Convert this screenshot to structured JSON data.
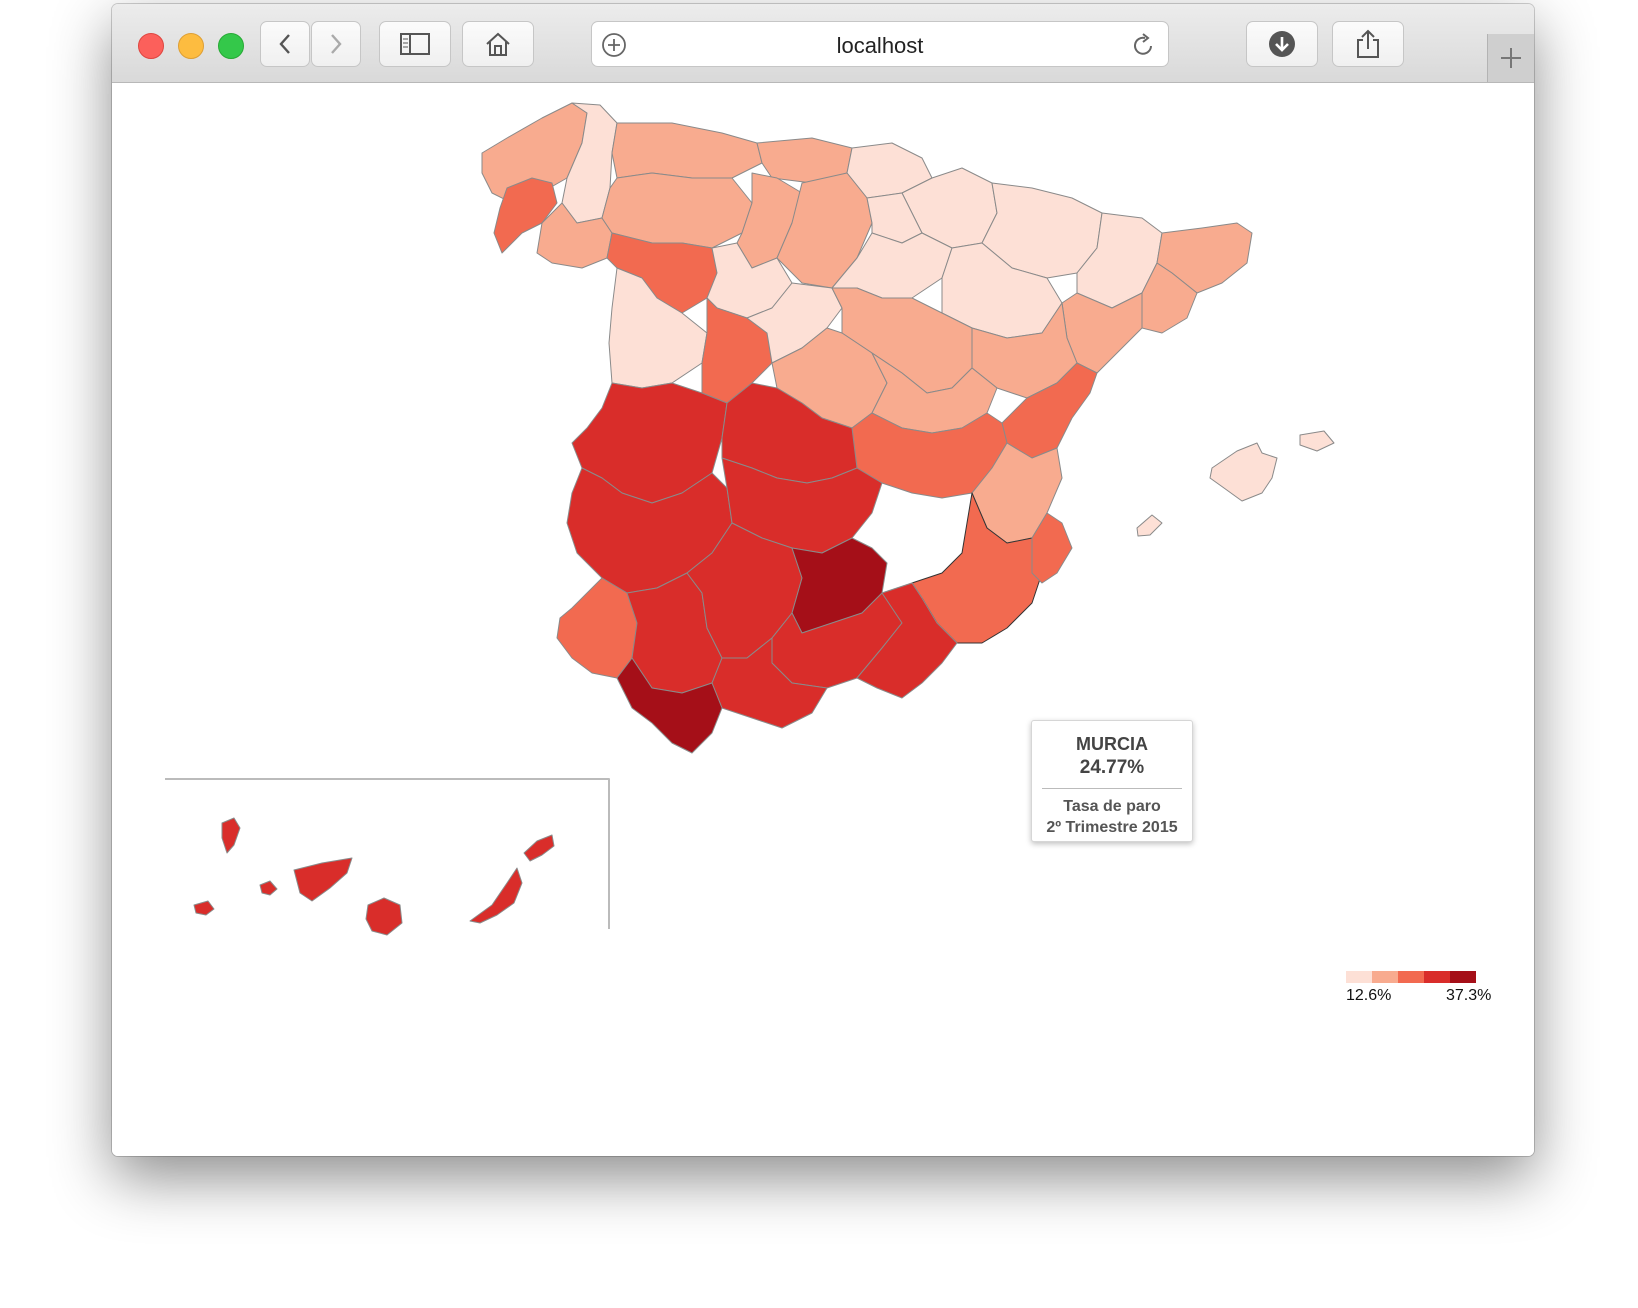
{
  "browser": {
    "address_text": "localhost",
    "icons": [
      "back-icon",
      "forward-icon",
      "sidebar-icon",
      "home-icon",
      "new-tab-add-icon",
      "reload-icon",
      "download-icon",
      "share-icon",
      "plus-icon"
    ]
  },
  "tooltip": {
    "region": "MURCIA",
    "value": "24.77%",
    "caption_line1": "Tasa de paro",
    "caption_line2": "2º Trimestre 2015"
  },
  "legend": {
    "min_label": "12.6%",
    "max_label": "37.3%",
    "colors": [
      "#fde0d6",
      "#f8ab8f",
      "#f26a50",
      "#d92d2a",
      "#a50f18"
    ]
  },
  "map": {
    "type": "choropleth",
    "metric": "Tasa de paro",
    "range": [
      12.6,
      37.3
    ],
    "highlighted_region": "MURCIA"
  }
}
